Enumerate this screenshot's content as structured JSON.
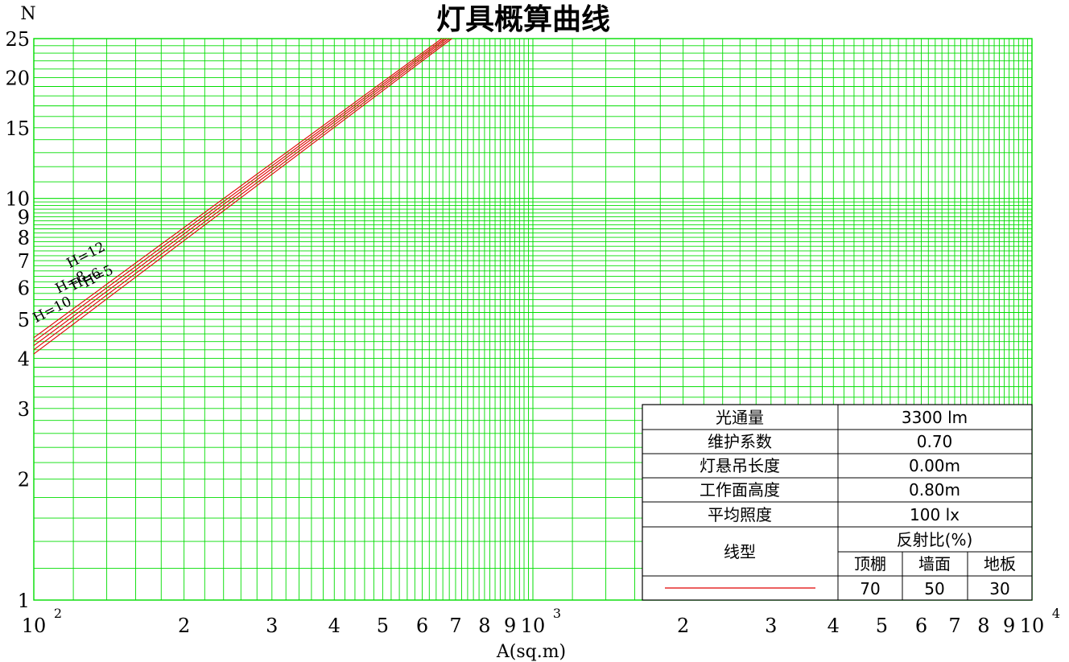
{
  "chart_data": {
    "type": "line",
    "title": "灯具概算曲线",
    "xlabel": "A(sq.m)",
    "ylabel": "N",
    "x_scale": "log",
    "y_scale": "log",
    "xlim": [
      100,
      10000
    ],
    "ylim": [
      1,
      25
    ],
    "grid": true,
    "grid_color": "#00dd00",
    "curve_color": "#e00000",
    "x_major_ticks": [
      {
        "value": 100,
        "label": "10",
        "sup": "2"
      },
      {
        "value": 200,
        "label": "2"
      },
      {
        "value": 300,
        "label": "3"
      },
      {
        "value": 400,
        "label": "4"
      },
      {
        "value": 500,
        "label": "5"
      },
      {
        "value": 600,
        "label": "6"
      },
      {
        "value": 700,
        "label": "7"
      },
      {
        "value": 800,
        "label": "8"
      },
      {
        "value": 900,
        "label": "9"
      },
      {
        "value": 1000,
        "label": "10",
        "sup": "3"
      },
      {
        "value": 2000,
        "label": "2"
      },
      {
        "value": 3000,
        "label": "3"
      },
      {
        "value": 4000,
        "label": "4"
      },
      {
        "value": 5000,
        "label": "5"
      },
      {
        "value": 6000,
        "label": "6"
      },
      {
        "value": 7000,
        "label": "7"
      },
      {
        "value": 8000,
        "label": "8"
      },
      {
        "value": 9000,
        "label": "9"
      },
      {
        "value": 10000,
        "label": "10",
        "sup": "4"
      }
    ],
    "y_ticks": [
      {
        "value": 1,
        "label": "1"
      },
      {
        "value": 2,
        "label": "2"
      },
      {
        "value": 3,
        "label": "3"
      },
      {
        "value": 4,
        "label": "4"
      },
      {
        "value": 5,
        "label": "5"
      },
      {
        "value": 6,
        "label": "6"
      },
      {
        "value": 7,
        "label": "7"
      },
      {
        "value": 8,
        "label": "8"
      },
      {
        "value": 9,
        "label": "9"
      },
      {
        "value": 10,
        "label": "10"
      },
      {
        "value": 15,
        "label": "15"
      },
      {
        "value": 20,
        "label": "20"
      },
      {
        "value": 25,
        "label": "25"
      }
    ],
    "series": [
      {
        "name": "H=12",
        "x": [
          100,
          657
        ],
        "y": [
          4.5,
          25
        ],
        "label_x": 118,
        "label_y": 6.7
      },
      {
        "name": "H=10",
        "x": [
          100,
          665
        ],
        "y": [
          4.4,
          25
        ],
        "label_x": 101,
        "label_y": 4.9
      },
      {
        "name": "H=8",
        "x": [
          100,
          672
        ],
        "y": [
          4.3,
          25
        ],
        "label_x": 112,
        "label_y": 5.8
      },
      {
        "name": "H=6",
        "x": [
          100,
          680
        ],
        "y": [
          4.2,
          25
        ],
        "label_x": 120,
        "label_y": 5.9
      },
      {
        "name": "H=5",
        "x": [
          100,
          688
        ],
        "y": [
          4.1,
          25
        ],
        "label_x": 127,
        "label_y": 6.0
      }
    ]
  },
  "info_table": {
    "luminous_flux_label": "光通量",
    "luminous_flux_value": "3300 lm",
    "maintenance_label": "维护系数",
    "maintenance_value": "0.70",
    "suspension_label": "灯悬吊长度",
    "suspension_value": "0.00m",
    "workplane_label": "工作面高度",
    "workplane_value": "0.80m",
    "illuminance_label": "平均照度",
    "illuminance_value": "100 lx",
    "line_type_label": "线型",
    "reflectance_label": "反射比(%)",
    "ceiling_label": "顶棚",
    "wall_label": "墙面",
    "floor_label": "地板",
    "ceiling_value": "70",
    "wall_value": "50",
    "floor_value": "30"
  }
}
